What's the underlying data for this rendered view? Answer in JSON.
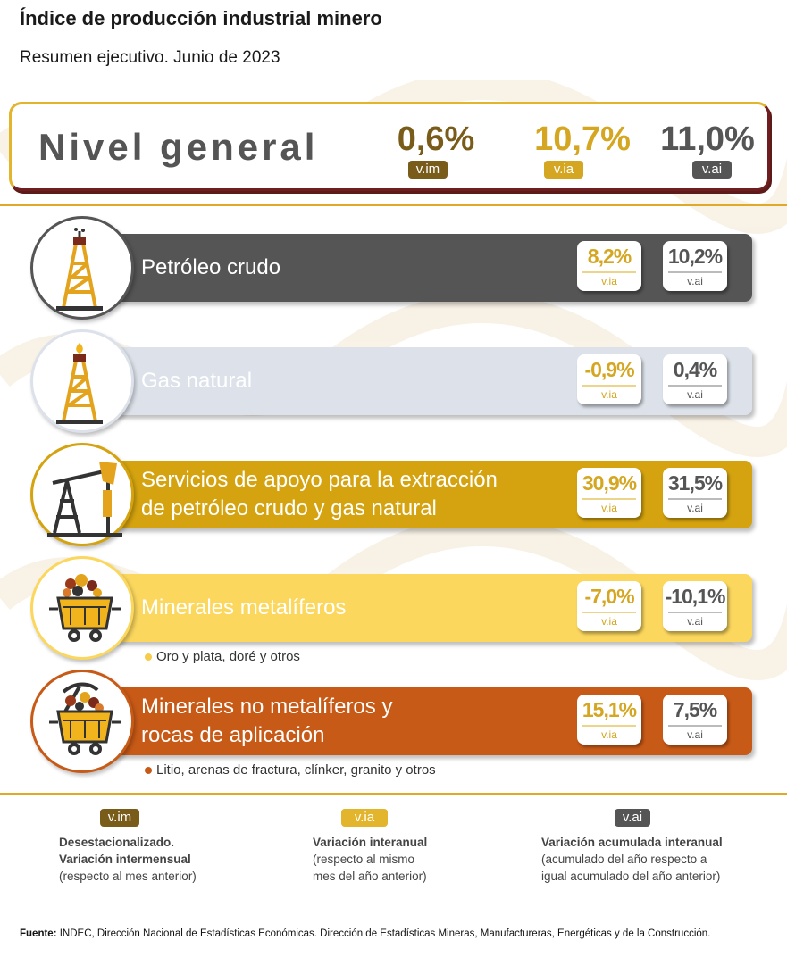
{
  "title": "Índice de producción industrial minero",
  "subtitle": "Resumen ejecutivo. Junio de 2023",
  "general": {
    "label": "Nivel general",
    "values": [
      {
        "value": "0,6%",
        "badge": "v.im",
        "color": "#7a5c1a"
      },
      {
        "value": "10,7%",
        "badge": "v.ia",
        "color": "#d4a621"
      },
      {
        "value": "11,0%",
        "badge": "v.ai",
        "color": "#555555"
      }
    ]
  },
  "sectors": [
    {
      "label_lines": [
        "Petróleo crudo"
      ],
      "band_color": "#555555",
      "label_color": "#ffffff",
      "icon": "oil-derrick-icon",
      "via": {
        "value": "8,2%",
        "label": "v.ia",
        "color": "#d4a621"
      },
      "vai": {
        "value": "10,2%",
        "label": "v.ai",
        "color": "#555555"
      },
      "note": ""
    },
    {
      "label_lines": [
        "Gas natural"
      ],
      "band_color": "#dde2ea",
      "label_color": "#ffffff",
      "icon": "gas-derrick-icon",
      "via": {
        "value": "-0,9%",
        "label": "v.ia",
        "color": "#d4a621"
      },
      "vai": {
        "value": "0,4%",
        "label": "v.ai",
        "color": "#555555"
      },
      "note": ""
    },
    {
      "label_lines": [
        "Servicios de apoyo para la extracción",
        "de petróleo crudo y gas natural"
      ],
      "band_color": "#d4a30f",
      "label_color": "#ffffff",
      "icon": "pumpjack-icon",
      "via": {
        "value": "30,9%",
        "label": "v.ia",
        "color": "#d4a621"
      },
      "vai": {
        "value": "31,5%",
        "label": "v.ai",
        "color": "#555555"
      },
      "note": ""
    },
    {
      "label_lines": [
        "Minerales metalíferos"
      ],
      "band_color": "#fbd75e",
      "label_color": "#ffffff",
      "icon": "mine-cart-icon",
      "via": {
        "value": "-7,0%",
        "label": "v.ia",
        "color": "#d4a621"
      },
      "vai": {
        "value": "-10,1%",
        "label": "v.ai",
        "color": "#555555"
      },
      "note": "Oro y plata, doré y otros",
      "note_color": "#f6cc4a"
    },
    {
      "label_lines": [
        "Minerales no metalíferos y",
        "rocas de aplicación"
      ],
      "band_color": "#c85a17",
      "label_color": "#ffffff",
      "icon": "mine-cart-pickaxe-icon",
      "via": {
        "value": "15,1%",
        "label": "v.ia",
        "color": "#d4a621"
      },
      "vai": {
        "value": "7,5%",
        "label": "v.ai",
        "color": "#555555"
      },
      "note": "Litio, arenas de fractura, clínker, granito y otros",
      "note_color": "#c85a17"
    }
  ],
  "legend": [
    {
      "badge": "v.im",
      "color": "#7a5c1a",
      "lines": [
        "Desestacionalizado.",
        "Variación intermensual",
        "(respecto al mes anterior)"
      ]
    },
    {
      "badge": "v.ia",
      "color": "#e2b52c",
      "lines": [
        "Variación interanual",
        "(respecto al mismo",
        "mes del año anterior)"
      ]
    },
    {
      "badge": "v.ai",
      "color": "#555555",
      "lines": [
        "Variación acumulada interanual",
        "(acumulado del año respecto a",
        "igual acumulado del año anterior)"
      ]
    }
  ],
  "source": {
    "label": "Fuente:",
    "text": " INDEC, Dirección Nacional de Estadísticas Económicas. Dirección de Estadísticas Mineras, Manufactureras, Energéticas y de la Construcción."
  }
}
